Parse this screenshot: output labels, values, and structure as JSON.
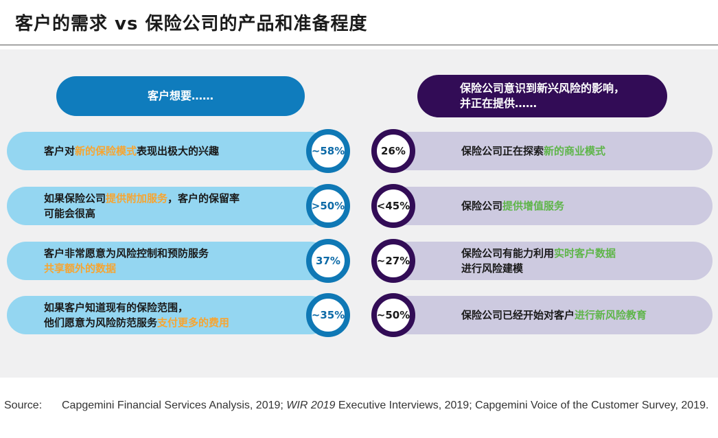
{
  "title": "客户的需求 vs 保险公司的产品和准备程度",
  "header_left": "客户想要……",
  "header_right": [
    "保险公司意识到新兴风险的影响，",
    "并正在提供……"
  ],
  "rows": [
    {
      "left": {
        "lines": [
          [
            {
              "t": "客户对"
            },
            {
              "t": "新的保险模式",
              "hl": true
            },
            {
              "t": "表现出极大的兴趣"
            }
          ]
        ]
      },
      "left_value": "~58%",
      "right_value": "26%",
      "right": {
        "lines": [
          [
            {
              "t": "保险公司正在探索"
            },
            {
              "t": "新的商业模式",
              "hl": true
            }
          ]
        ]
      }
    },
    {
      "left": {
        "lines": [
          [
            {
              "t": "如果保险公司"
            },
            {
              "t": "提供附加服务",
              "hl": true
            },
            {
              "t": "，客户的保留率"
            }
          ],
          [
            {
              "t": "可能会很高"
            }
          ]
        ]
      },
      "left_value": ">50%",
      "right_value": "<45%",
      "right": {
        "lines": [
          [
            {
              "t": "保险公司"
            },
            {
              "t": "提供增值服务",
              "hl": true
            }
          ]
        ]
      }
    },
    {
      "left": {
        "lines": [
          [
            {
              "t": "客户非常愿意为风险控制和预防服务"
            }
          ],
          [
            {
              "t": "共享额外的数据",
              "hl": true
            }
          ]
        ]
      },
      "left_value": "37%",
      "right_value": "~27%",
      "right": {
        "lines": [
          [
            {
              "t": "保险公司有能力利用"
            },
            {
              "t": "实时客户数据",
              "hl": true
            }
          ],
          [
            {
              "t": "进行风险建模"
            }
          ]
        ]
      }
    },
    {
      "left": {
        "lines": [
          [
            {
              "t": "如果客户知道现有的保险范围，"
            }
          ],
          [
            {
              "t": "他们愿意为风险防范服务"
            },
            {
              "t": "支付更多的费用",
              "hl": true
            }
          ]
        ]
      },
      "left_value": "~35%",
      "right_value": "~50%",
      "right": {
        "lines": [
          [
            {
              "t": "保险公司已经开始对客户"
            },
            {
              "t": "进行新风险教育",
              "hl": true
            }
          ]
        ]
      }
    }
  ],
  "source_label": "Source:",
  "source_parts": [
    {
      "t": "Capgemini Financial Services Analysis, 2019; "
    },
    {
      "t": "WIR 2019",
      "italic": true
    },
    {
      "t": " Executive Interviews, 2019; Capgemini Voice of the Customer Survey, 2019."
    }
  ],
  "colors": {
    "left_header": "#0f7cbd",
    "right_header": "#320c56",
    "left_bar": "#94d6f1",
    "right_bar": "#cdcae0",
    "left_highlight": "#f7a531",
    "right_highlight": "#5fb54a"
  }
}
